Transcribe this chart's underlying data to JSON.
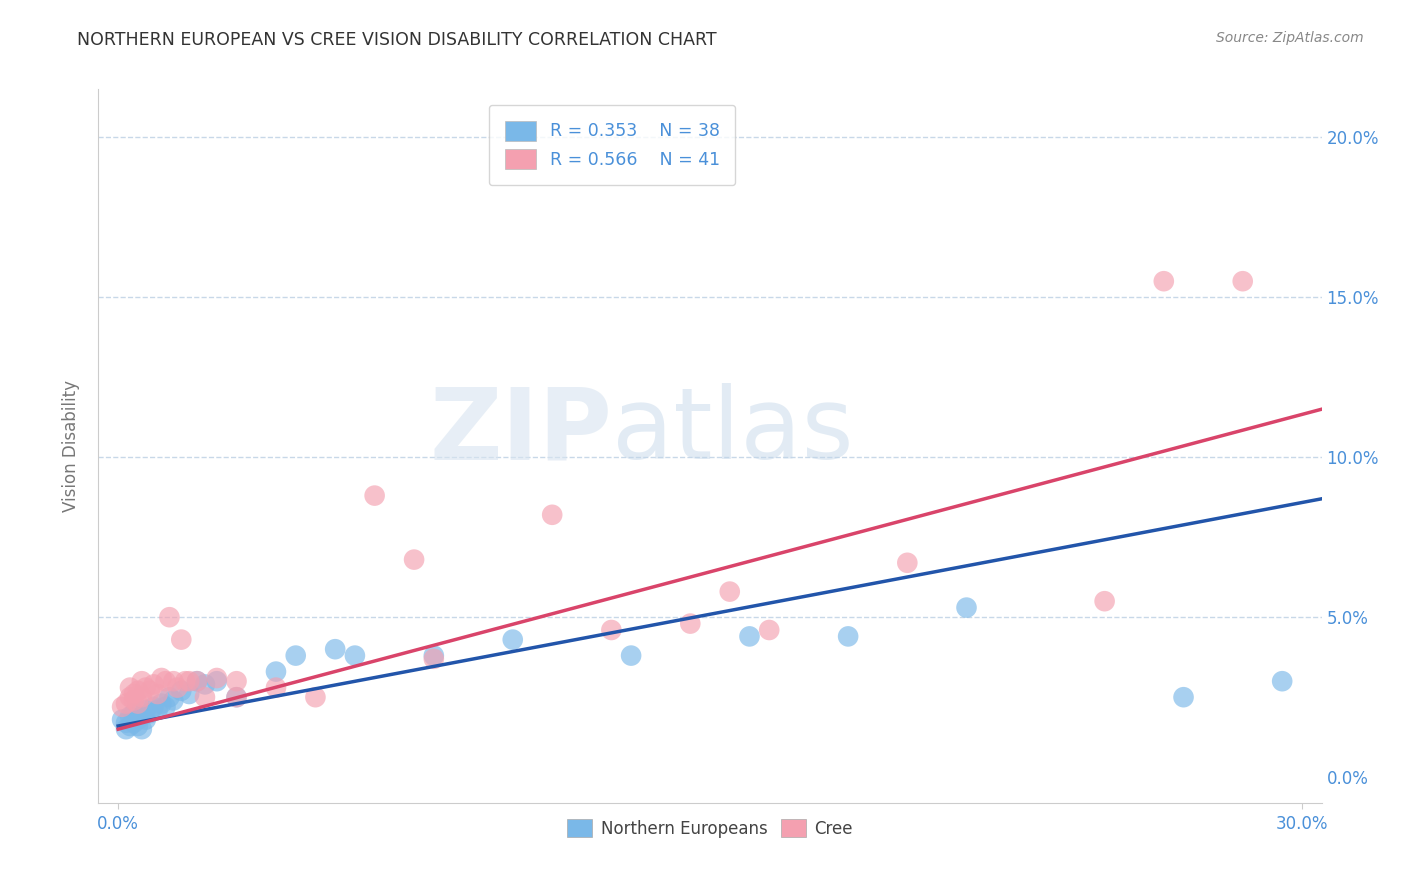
{
  "title": "NORTHERN EUROPEAN VS CREE VISION DISABILITY CORRELATION CHART",
  "source_text": "Source: ZipAtlas.com",
  "xlabel": "",
  "ylabel": "Vision Disability",
  "xlim": [
    -0.005,
    0.305
  ],
  "ylim": [
    -0.008,
    0.215
  ],
  "xtick_positions": [
    0.0,
    0.3
  ],
  "ytick_positions": [
    0.0,
    0.05,
    0.1,
    0.15,
    0.2
  ],
  "xtick_labels": [
    "0.0%",
    "30.0%"
  ],
  "ytick_labels": [
    "0.0%",
    "5.0%",
    "10.0%",
    "15.0%",
    "20.0%"
  ],
  "blue_R": 0.353,
  "blue_N": 38,
  "pink_R": 0.566,
  "pink_N": 41,
  "blue_color": "#7ab8e8",
  "pink_color": "#f4a0b0",
  "blue_scatter_alpha": 0.65,
  "pink_scatter_alpha": 0.65,
  "blue_line_color": "#2255aa",
  "pink_line_color": "#d9446a",
  "blue_scatter": [
    [
      0.001,
      0.018
    ],
    [
      0.002,
      0.017
    ],
    [
      0.002,
      0.015
    ],
    [
      0.003,
      0.019
    ],
    [
      0.003,
      0.016
    ],
    [
      0.004,
      0.02
    ],
    [
      0.004,
      0.017
    ],
    [
      0.005,
      0.018
    ],
    [
      0.005,
      0.016
    ],
    [
      0.006,
      0.019
    ],
    [
      0.006,
      0.015
    ],
    [
      0.007,
      0.021
    ],
    [
      0.007,
      0.018
    ],
    [
      0.008,
      0.02
    ],
    [
      0.009,
      0.022
    ],
    [
      0.01,
      0.021
    ],
    [
      0.011,
      0.023
    ],
    [
      0.012,
      0.022
    ],
    [
      0.013,
      0.025
    ],
    [
      0.014,
      0.024
    ],
    [
      0.016,
      0.027
    ],
    [
      0.018,
      0.026
    ],
    [
      0.02,
      0.03
    ],
    [
      0.022,
      0.029
    ],
    [
      0.025,
      0.03
    ],
    [
      0.03,
      0.025
    ],
    [
      0.04,
      0.033
    ],
    [
      0.045,
      0.038
    ],
    [
      0.055,
      0.04
    ],
    [
      0.06,
      0.038
    ],
    [
      0.08,
      0.038
    ],
    [
      0.1,
      0.043
    ],
    [
      0.13,
      0.038
    ],
    [
      0.16,
      0.044
    ],
    [
      0.185,
      0.044
    ],
    [
      0.215,
      0.053
    ],
    [
      0.27,
      0.025
    ],
    [
      0.295,
      0.03
    ]
  ],
  "pink_scatter": [
    [
      0.001,
      0.022
    ],
    [
      0.002,
      0.023
    ],
    [
      0.003,
      0.025
    ],
    [
      0.003,
      0.028
    ],
    [
      0.004,
      0.026
    ],
    [
      0.004,
      0.024
    ],
    [
      0.005,
      0.027
    ],
    [
      0.005,
      0.023
    ],
    [
      0.006,
      0.03
    ],
    [
      0.006,
      0.025
    ],
    [
      0.007,
      0.028
    ],
    [
      0.008,
      0.027
    ],
    [
      0.009,
      0.029
    ],
    [
      0.01,
      0.026
    ],
    [
      0.011,
      0.031
    ],
    [
      0.012,
      0.03
    ],
    [
      0.013,
      0.05
    ],
    [
      0.014,
      0.03
    ],
    [
      0.015,
      0.028
    ],
    [
      0.016,
      0.043
    ],
    [
      0.017,
      0.03
    ],
    [
      0.018,
      0.03
    ],
    [
      0.02,
      0.03
    ],
    [
      0.022,
      0.025
    ],
    [
      0.025,
      0.031
    ],
    [
      0.03,
      0.025
    ],
    [
      0.03,
      0.03
    ],
    [
      0.04,
      0.028
    ],
    [
      0.05,
      0.025
    ],
    [
      0.065,
      0.088
    ],
    [
      0.075,
      0.068
    ],
    [
      0.08,
      0.037
    ],
    [
      0.11,
      0.082
    ],
    [
      0.125,
      0.046
    ],
    [
      0.145,
      0.048
    ],
    [
      0.155,
      0.058
    ],
    [
      0.165,
      0.046
    ],
    [
      0.2,
      0.067
    ],
    [
      0.25,
      0.055
    ],
    [
      0.265,
      0.155
    ],
    [
      0.285,
      0.155
    ]
  ],
  "blue_trendline_x": [
    0.0,
    0.305
  ],
  "blue_trendline_y": [
    0.016,
    0.087
  ],
  "pink_trendline_x": [
    0.0,
    0.305
  ],
  "pink_trendline_y": [
    0.015,
    0.115
  ],
  "grid_yticks": [
    0.05,
    0.1,
    0.15,
    0.2
  ],
  "watermark": "ZIPatlas",
  "background_color": "#ffffff",
  "grid_color": "#c8d8e8",
  "title_color": "#333333",
  "axis_tick_color": "#4a90d9",
  "axis_label_color": "#777777"
}
